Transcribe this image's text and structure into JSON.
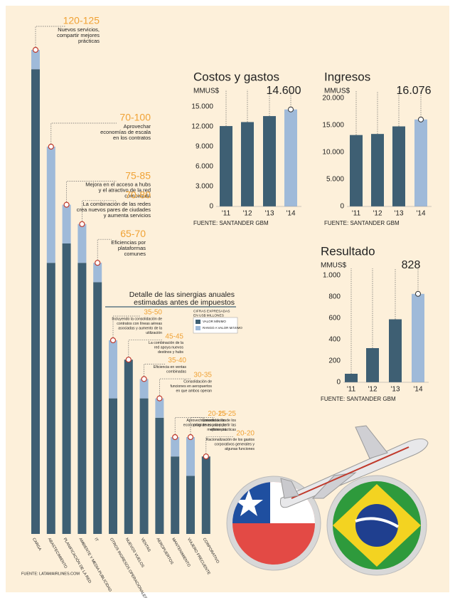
{
  "chart_data": [
    {
      "type": "range_bar",
      "title_lines": [
        "Detalle de las sinergias anuales",
        "estimadas antes de impuestos"
      ],
      "note": [
        "CIFRAS EXPRESADAS",
        "EN US$ MILLONES"
      ],
      "categories": [
        "CARGA",
        "ABASTECIMIENTO",
        "PLANIFICACIÓN DE LA RED",
        "AMBIENTE Y MEDIA PUBLICIDAD",
        "IT",
        "OTROS INGRESOS OPERACIONALES",
        "NUEVOS VUELOS",
        "VENTAS",
        "AEROPUERTOS",
        "MANTENIMIENTO",
        "VIAJERO FRECUENTE",
        "CORPORATIVO"
      ],
      "series": [
        {
          "name": "VALOR MÍNIMO",
          "color": "#3e5f73",
          "values": [
            120,
            70,
            75,
            70,
            65,
            35,
            45,
            35,
            30,
            20,
            15,
            20
          ]
        },
        {
          "name": "RANGO A VALOR MÁXIMO",
          "color": "#9fbad9",
          "values": [
            125,
            100,
            85,
            80,
            70,
            50,
            45,
            40,
            35,
            25,
            25,
            20
          ]
        }
      ],
      "value_labels": [
        "120-125",
        "70-100",
        "75-85",
        "70-80",
        "65-70",
        "35-50",
        "45-45",
        "35-40",
        "30-35",
        "20-25",
        "15-25",
        "20-20"
      ],
      "descriptions": [
        [
          "Nuevos servicios,",
          "compartir mejores",
          "prácticas"
        ],
        [
          "Aprovechar",
          "economías de escala",
          "en los contratos"
        ],
        [
          "Mejora en el acceso a hubs",
          "y el atractivo de la red",
          "combinada"
        ],
        [
          "La combinación de las redes",
          "crea nuevos pares de ciudades",
          "y aumenta servicios"
        ],
        [
          "Eficiencias por",
          "plataformas",
          "comunes"
        ],
        [
          "Incluyendo la consolidación de",
          "contratos con líneas aéreas",
          "asociadas y aumento de la",
          "utilización"
        ],
        [
          "La combinación de la",
          "red apoya nuevos",
          "destinos y hubs"
        ],
        [
          "Eficiencia en ventas",
          "combinadas"
        ],
        [
          "Consolidación de",
          "funciones en aeropuertos",
          "en que ambos operan"
        ],
        [
          "Aprovechamiento de las",
          "economías de escala y de",
          "eficiencia"
        ],
        [
          "Consolidación de los",
          "programas y compartir las",
          "mejores prácticas"
        ],
        [
          "Racionalización de los gastos",
          "corporativos generales y",
          "algunas funciones"
        ]
      ],
      "source": "FUENTE: LATAMAIRLINES.COM"
    },
    {
      "type": "bar",
      "title": "Costos y gastos",
      "unit": "MMUS$",
      "categories": [
        "'11",
        "'12",
        "'13",
        "'14"
      ],
      "values": [
        12100,
        12700,
        13600,
        14600
      ],
      "colors": [
        "#3e5f73",
        "#3e5f73",
        "#3e5f73",
        "#9fbad9"
      ],
      "value_labels": [
        null,
        null,
        null,
        "14.600"
      ],
      "ylim": [
        0,
        16500
      ],
      "yticks": [
        0,
        {
          "value": 3000,
          "label": "3.000"
        },
        {
          "value": 6000,
          "label": "6.000"
        },
        {
          "value": 9000,
          "label": "9.000"
        },
        {
          "value": 12000,
          "label": "12.000"
        },
        {
          "value": 15000,
          "label": "15.000"
        }
      ],
      "source": "FUENTE: SANTANDER GBM"
    },
    {
      "type": "bar",
      "title": "Ingresos",
      "unit": "MMUS$",
      "categories": [
        "'11",
        "'12",
        "'13",
        "'14"
      ],
      "values": [
        13200,
        13400,
        14800,
        16076
      ],
      "colors": [
        "#3e5f73",
        "#3e5f73",
        "#3e5f73",
        "#9fbad9"
      ],
      "value_labels": [
        null,
        null,
        null,
        "16.076"
      ],
      "ylim": [
        0,
        20000
      ],
      "yticks": [
        0,
        {
          "value": 5000,
          "label": "5.000"
        },
        {
          "value": 10000,
          "label": "10.000"
        },
        {
          "value": 15000,
          "label": "15.000"
        },
        {
          "value": 20000,
          "label": "20.000"
        }
      ],
      "source": "FUENTE: SANTANDER GBM"
    },
    {
      "type": "bar",
      "title": "Resultado",
      "unit": "MMUS$",
      "categories": [
        "'11",
        "'12",
        "'13",
        "'14"
      ],
      "values": [
        80,
        320,
        590,
        828
      ],
      "colors": [
        "#3e5f73",
        "#3e5f73",
        "#3e5f73",
        "#9fbad9"
      ],
      "value_labels": [
        null,
        null,
        null,
        "828"
      ],
      "ylim": [
        0,
        1000
      ],
      "yticks": [
        0,
        200,
        400,
        600,
        800,
        {
          "value": 1000,
          "label": "1.000"
        }
      ],
      "source": "FUENTE: SANTANDER GBM"
    }
  ]
}
